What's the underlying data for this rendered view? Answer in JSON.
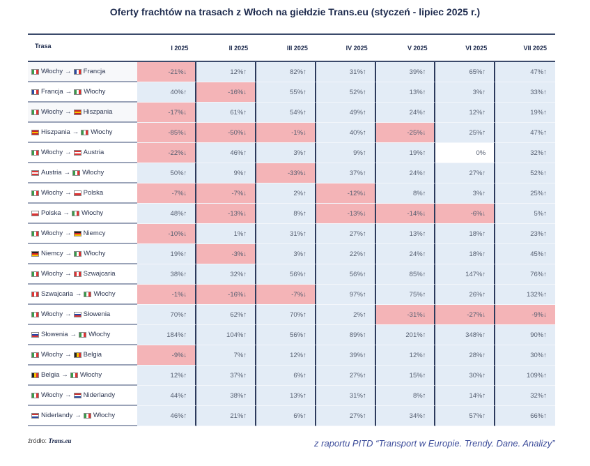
{
  "chart_data": {
    "type": "table",
    "title": "Oferty frachtów na trasach z Włoch na giełdzie Trans.eu (styczeń - lipiec 2025 r.)",
    "row_header": "Trasa",
    "columns": [
      "I 2025",
      "II 2025",
      "III 2025",
      "IV 2025",
      "V 2025",
      "VI 2025",
      "VII 2025"
    ],
    "unit": "%",
    "colors": {
      "negative": "#f4b4b7",
      "positive": "#e3ecf6",
      "zero": "#ffffff"
    },
    "rows": [
      {
        "from": "Włochy",
        "to": "Francja",
        "from_flag": "it",
        "to_flag": "fr",
        "values": [
          -21,
          12,
          82,
          31,
          39,
          65,
          47
        ]
      },
      {
        "from": "Francja",
        "to": "Włochy",
        "from_flag": "fr",
        "to_flag": "it",
        "values": [
          40,
          -16,
          55,
          52,
          13,
          3,
          33
        ]
      },
      {
        "from": "Włochy",
        "to": "Hiszpania",
        "from_flag": "it",
        "to_flag": "es",
        "values": [
          -17,
          61,
          54,
          49,
          24,
          12,
          19
        ]
      },
      {
        "from": "Hiszpania",
        "to": "Włochy",
        "from_flag": "es",
        "to_flag": "it",
        "values": [
          -85,
          -50,
          -1,
          40,
          -25,
          25,
          47
        ]
      },
      {
        "from": "Włochy",
        "to": "Austria",
        "from_flag": "it",
        "to_flag": "at",
        "values": [
          -22,
          46,
          3,
          9,
          19,
          0,
          32
        ]
      },
      {
        "from": "Austria",
        "to": "Włochy",
        "from_flag": "at",
        "to_flag": "it",
        "values": [
          50,
          9,
          -33,
          37,
          24,
          27,
          52
        ]
      },
      {
        "from": "Włochy",
        "to": "Polska",
        "from_flag": "it",
        "to_flag": "pl",
        "values": [
          -7,
          -7,
          2,
          -12,
          8,
          3,
          25
        ]
      },
      {
        "from": "Polska",
        "to": "Włochy",
        "from_flag": "pl",
        "to_flag": "it",
        "values": [
          48,
          -13,
          8,
          -13,
          -14,
          -6,
          5
        ]
      },
      {
        "from": "Włochy",
        "to": "Niemcy",
        "from_flag": "it",
        "to_flag": "de",
        "values": [
          -10,
          1,
          31,
          27,
          13,
          18,
          23
        ]
      },
      {
        "from": "Niemcy",
        "to": "Włochy",
        "from_flag": "de",
        "to_flag": "it",
        "values": [
          19,
          -3,
          3,
          22,
          24,
          18,
          45
        ]
      },
      {
        "from": "Włochy",
        "to": "Szwajcaria",
        "from_flag": "it",
        "to_flag": "ch",
        "values": [
          38,
          32,
          56,
          56,
          85,
          147,
          76
        ]
      },
      {
        "from": "Szwajcaria",
        "to": "Włochy",
        "from_flag": "ch",
        "to_flag": "it",
        "values": [
          -1,
          -16,
          -7,
          97,
          75,
          26,
          132
        ]
      },
      {
        "from": "Włochy",
        "to": "Słowenia",
        "from_flag": "it",
        "to_flag": "si",
        "values": [
          70,
          62,
          70,
          2,
          -31,
          -27,
          -9
        ]
      },
      {
        "from": "Słowenia",
        "to": "Włochy",
        "from_flag": "si",
        "to_flag": "it",
        "values": [
          184,
          104,
          56,
          89,
          201,
          348,
          90
        ]
      },
      {
        "from": "Włochy",
        "to": "Belgia",
        "from_flag": "it",
        "to_flag": "be",
        "values": [
          -9,
          7,
          12,
          39,
          12,
          28,
          30
        ]
      },
      {
        "from": "Belgia",
        "to": "Włochy",
        "from_flag": "be",
        "to_flag": "it",
        "values": [
          12,
          37,
          6,
          27,
          15,
          30,
          109
        ]
      },
      {
        "from": "Włochy",
        "to": "Niderlandy",
        "from_flag": "it",
        "to_flag": "nl",
        "values": [
          44,
          38,
          13,
          31,
          8,
          14,
          32
        ]
      },
      {
        "from": "Niderlandy",
        "to": "Włochy",
        "from_flag": "nl",
        "to_flag": "it",
        "values": [
          46,
          21,
          6,
          27,
          34,
          57,
          66
        ]
      }
    ]
  },
  "footer": {
    "source_label": "źródło:",
    "source_name": "Trans.eu",
    "citation": "z raportu PITD “Transport w Europie. Trendy. Dane. Analizy”"
  }
}
